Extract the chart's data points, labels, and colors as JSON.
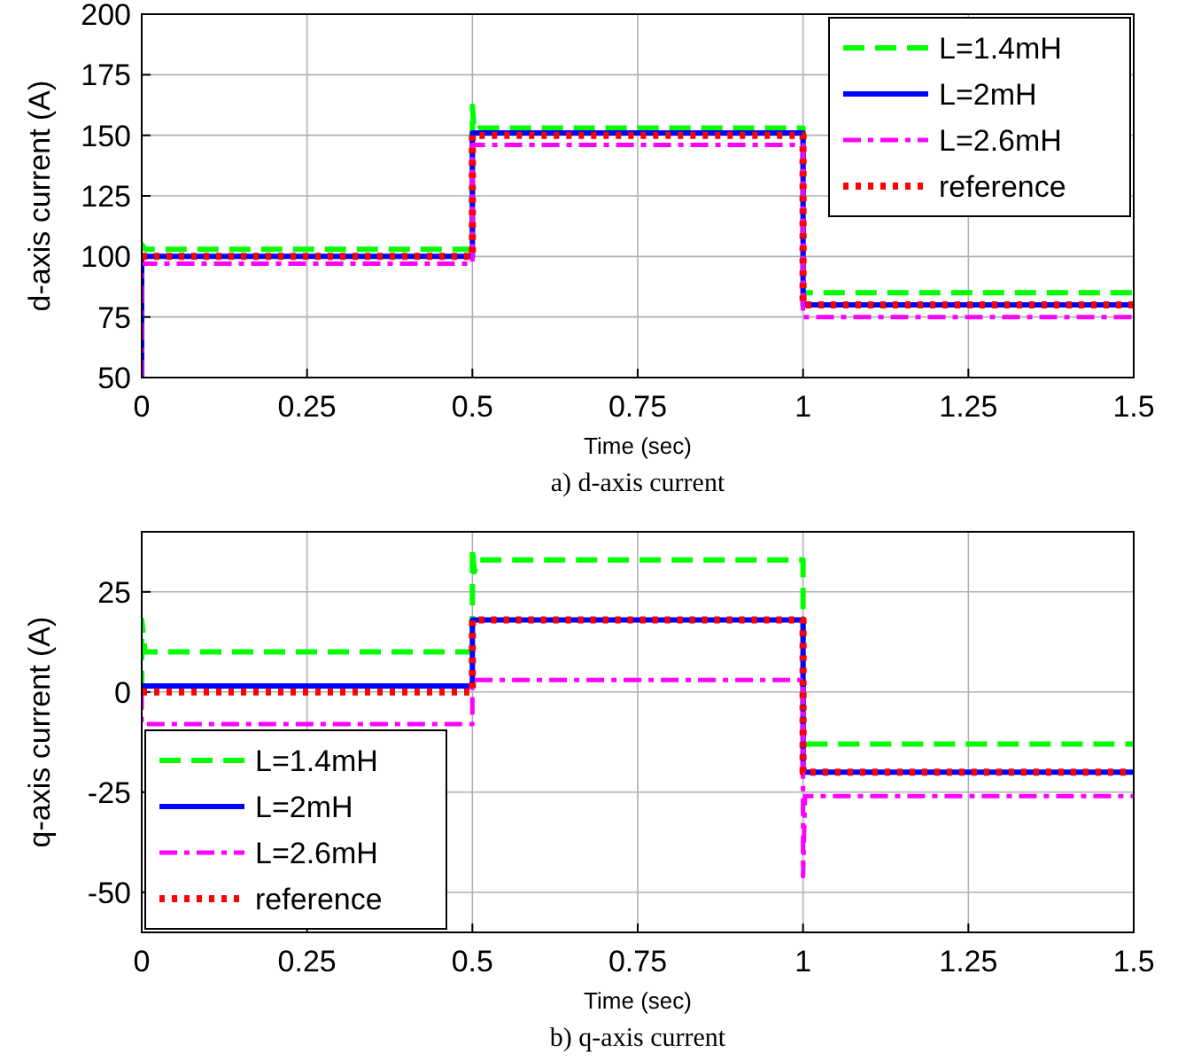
{
  "chart_data": [
    {
      "type": "line",
      "title": "a) d-axis current",
      "xlabel": "Time (sec)",
      "ylabel": "d-axis current (A)",
      "xlim": [
        0,
        1.5
      ],
      "xticks": [
        0,
        0.25,
        0.5,
        0.75,
        1,
        1.25,
        {
          "value": 1.5,
          "label": "1.5"
        }
      ],
      "ylim": [
        50,
        200
      ],
      "yticks": [
        50,
        75,
        100,
        125,
        150,
        175,
        200
      ],
      "grid": true,
      "legend": "top right",
      "series": [
        {
          "name": "L=1.4mH",
          "color": "#00ff00",
          "line_style": "dashed",
          "x": [
            0,
            0,
            0.005,
            0.5,
            0.5,
            0.503,
            0.51,
            1,
            1,
            1.5
          ],
          "values": [
            50,
            105,
            103,
            103,
            162,
            152,
            153,
            153,
            85,
            85
          ]
        },
        {
          "name": "L=2mH",
          "color": "#0000ff",
          "line_style": "solid",
          "x": [
            0,
            0,
            0.5,
            0.5,
            1,
            1,
            1.5
          ],
          "values": [
            50,
            100,
            100,
            151,
            151,
            80,
            80
          ]
        },
        {
          "name": "L=2.6mH",
          "color": "#ff00ff",
          "line_style": "dashdot",
          "x": [
            0,
            0,
            0.5,
            0.5,
            1,
            1,
            1.5
          ],
          "values": [
            50,
            97,
            97,
            146,
            146,
            75,
            75
          ]
        },
        {
          "name": "reference",
          "color": "#ff0000",
          "line_style": "dotted",
          "x": [
            0,
            0,
            0.5,
            0.5,
            1,
            1,
            1.5
          ],
          "values": [
            100,
            100,
            100,
            150,
            150,
            80,
            80
          ]
        }
      ]
    },
    {
      "type": "line",
      "title": "b) q-axis current",
      "xlabel": "Time (sec)",
      "ylabel": "q-axis current (A)",
      "xlim": [
        0,
        1.5
      ],
      "xticks": [
        0,
        0.25,
        0.5,
        0.75,
        1,
        1.25,
        1.5
      ],
      "ylim": [
        -60,
        40
      ],
      "yticks": [
        -50,
        -25,
        0,
        25
      ],
      "grid": true,
      "legend": "bottom left",
      "series": [
        {
          "name": "L=1.4mH",
          "color": "#00ff00",
          "line_style": "dashed",
          "x": [
            0,
            0,
            0.005,
            0.5,
            0.5,
            0.503,
            0.51,
            1,
            1,
            1.5
          ],
          "values": [
            0,
            18,
            10,
            10,
            36,
            30,
            33,
            33,
            -13,
            -13
          ]
        },
        {
          "name": "L=2mH",
          "color": "#0000ff",
          "line_style": "solid",
          "x": [
            0,
            0,
            0.5,
            0.5,
            1,
            1,
            1.5
          ],
          "values": [
            0,
            1.5,
            1.5,
            18,
            18,
            -20,
            -20
          ]
        },
        {
          "name": "L=2.6mH",
          "color": "#ff00ff",
          "line_style": "dashdot",
          "x": [
            0,
            0,
            0.5,
            0.5,
            1,
            1,
            1.003,
            1.5
          ],
          "values": [
            0,
            -8,
            -8,
            3,
            3,
            -46,
            -26,
            -26
          ]
        },
        {
          "name": "reference",
          "color": "#ff0000",
          "line_style": "dotted",
          "x": [
            0,
            0,
            0.5,
            0.5,
            1,
            1,
            1.5
          ],
          "values": [
            0,
            0,
            0,
            18,
            18,
            -20,
            -20
          ]
        }
      ]
    }
  ]
}
